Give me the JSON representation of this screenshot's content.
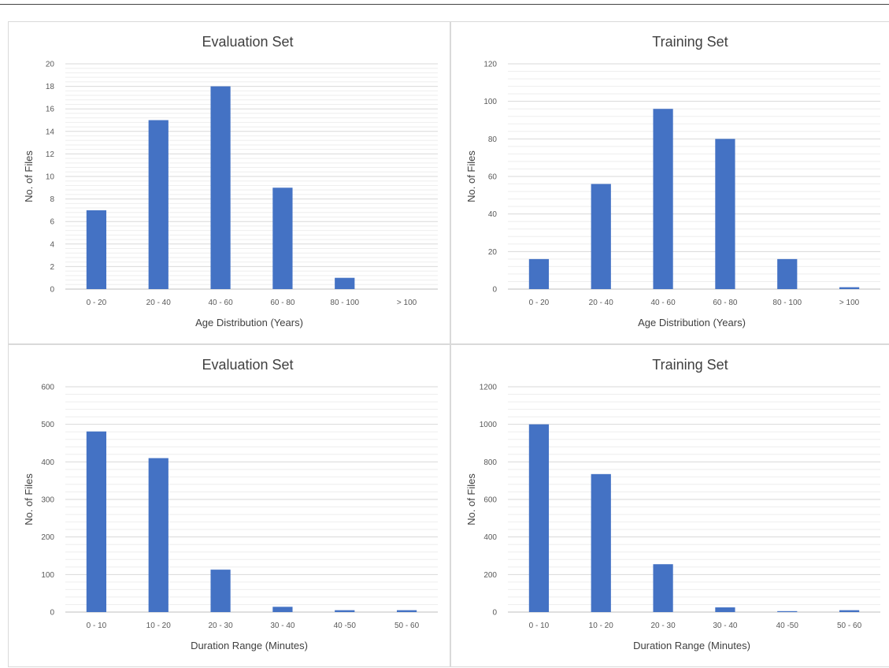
{
  "chart_data": [
    {
      "type": "bar",
      "title": "Evaluation Set",
      "xlabel": "Age Distribution (Years)",
      "ylabel": "No. of Files",
      "categories": [
        "0 - 20",
        "20 - 40",
        "40 - 60",
        "60 - 80",
        "80 - 100",
        "> 100"
      ],
      "values": [
        7,
        15,
        18,
        9,
        1,
        0
      ],
      "yticks": [
        "0",
        "2",
        "4",
        "6",
        "8",
        "10",
        "12",
        "14",
        "16",
        "18",
        "20"
      ],
      "ylim": [
        0,
        20
      ],
      "color": "#4472c4",
      "grid": true
    },
    {
      "type": "bar",
      "title": "Training Set",
      "xlabel": "Age Distribution (Years)",
      "ylabel": "No. of Files",
      "categories": [
        "0 - 20",
        "20 - 40",
        "40 - 60",
        "60 - 80",
        "80 - 100",
        "> 100"
      ],
      "values": [
        16,
        56,
        96,
        80,
        16,
        1
      ],
      "yticks": [
        "0",
        "20",
        "40",
        "60",
        "80",
        "100",
        "120"
      ],
      "ylim": [
        0,
        120
      ],
      "color": "#4472c4",
      "grid": true
    },
    {
      "type": "bar",
      "title": "Evaluation Set",
      "xlabel": "Duration Range (Minutes)",
      "ylabel": "No. of Files",
      "categories": [
        "0 - 10",
        "10 - 20",
        "20 - 30",
        "30 - 40",
        "40 -50",
        "50 - 60"
      ],
      "values": [
        481,
        410,
        113,
        14,
        5,
        5
      ],
      "yticks": [
        "0",
        "100",
        "200",
        "300",
        "400",
        "500",
        "600"
      ],
      "ylim": [
        0,
        600
      ],
      "color": "#4472c4",
      "grid": true
    },
    {
      "type": "bar",
      "title": "Training Set",
      "xlabel": "Duration Range (Minutes)",
      "ylabel": "No. of Files",
      "categories": [
        "0 - 10",
        "10 - 20",
        "20 - 30",
        "30 - 40",
        "40 -50",
        "50 - 60"
      ],
      "values": [
        1000,
        735,
        255,
        25,
        5,
        10
      ],
      "yticks": [
        "0",
        "200",
        "400",
        "600",
        "800",
        "1000",
        "1200"
      ],
      "ylim": [
        0,
        1200
      ],
      "color": "#4472c4",
      "grid": true
    }
  ]
}
